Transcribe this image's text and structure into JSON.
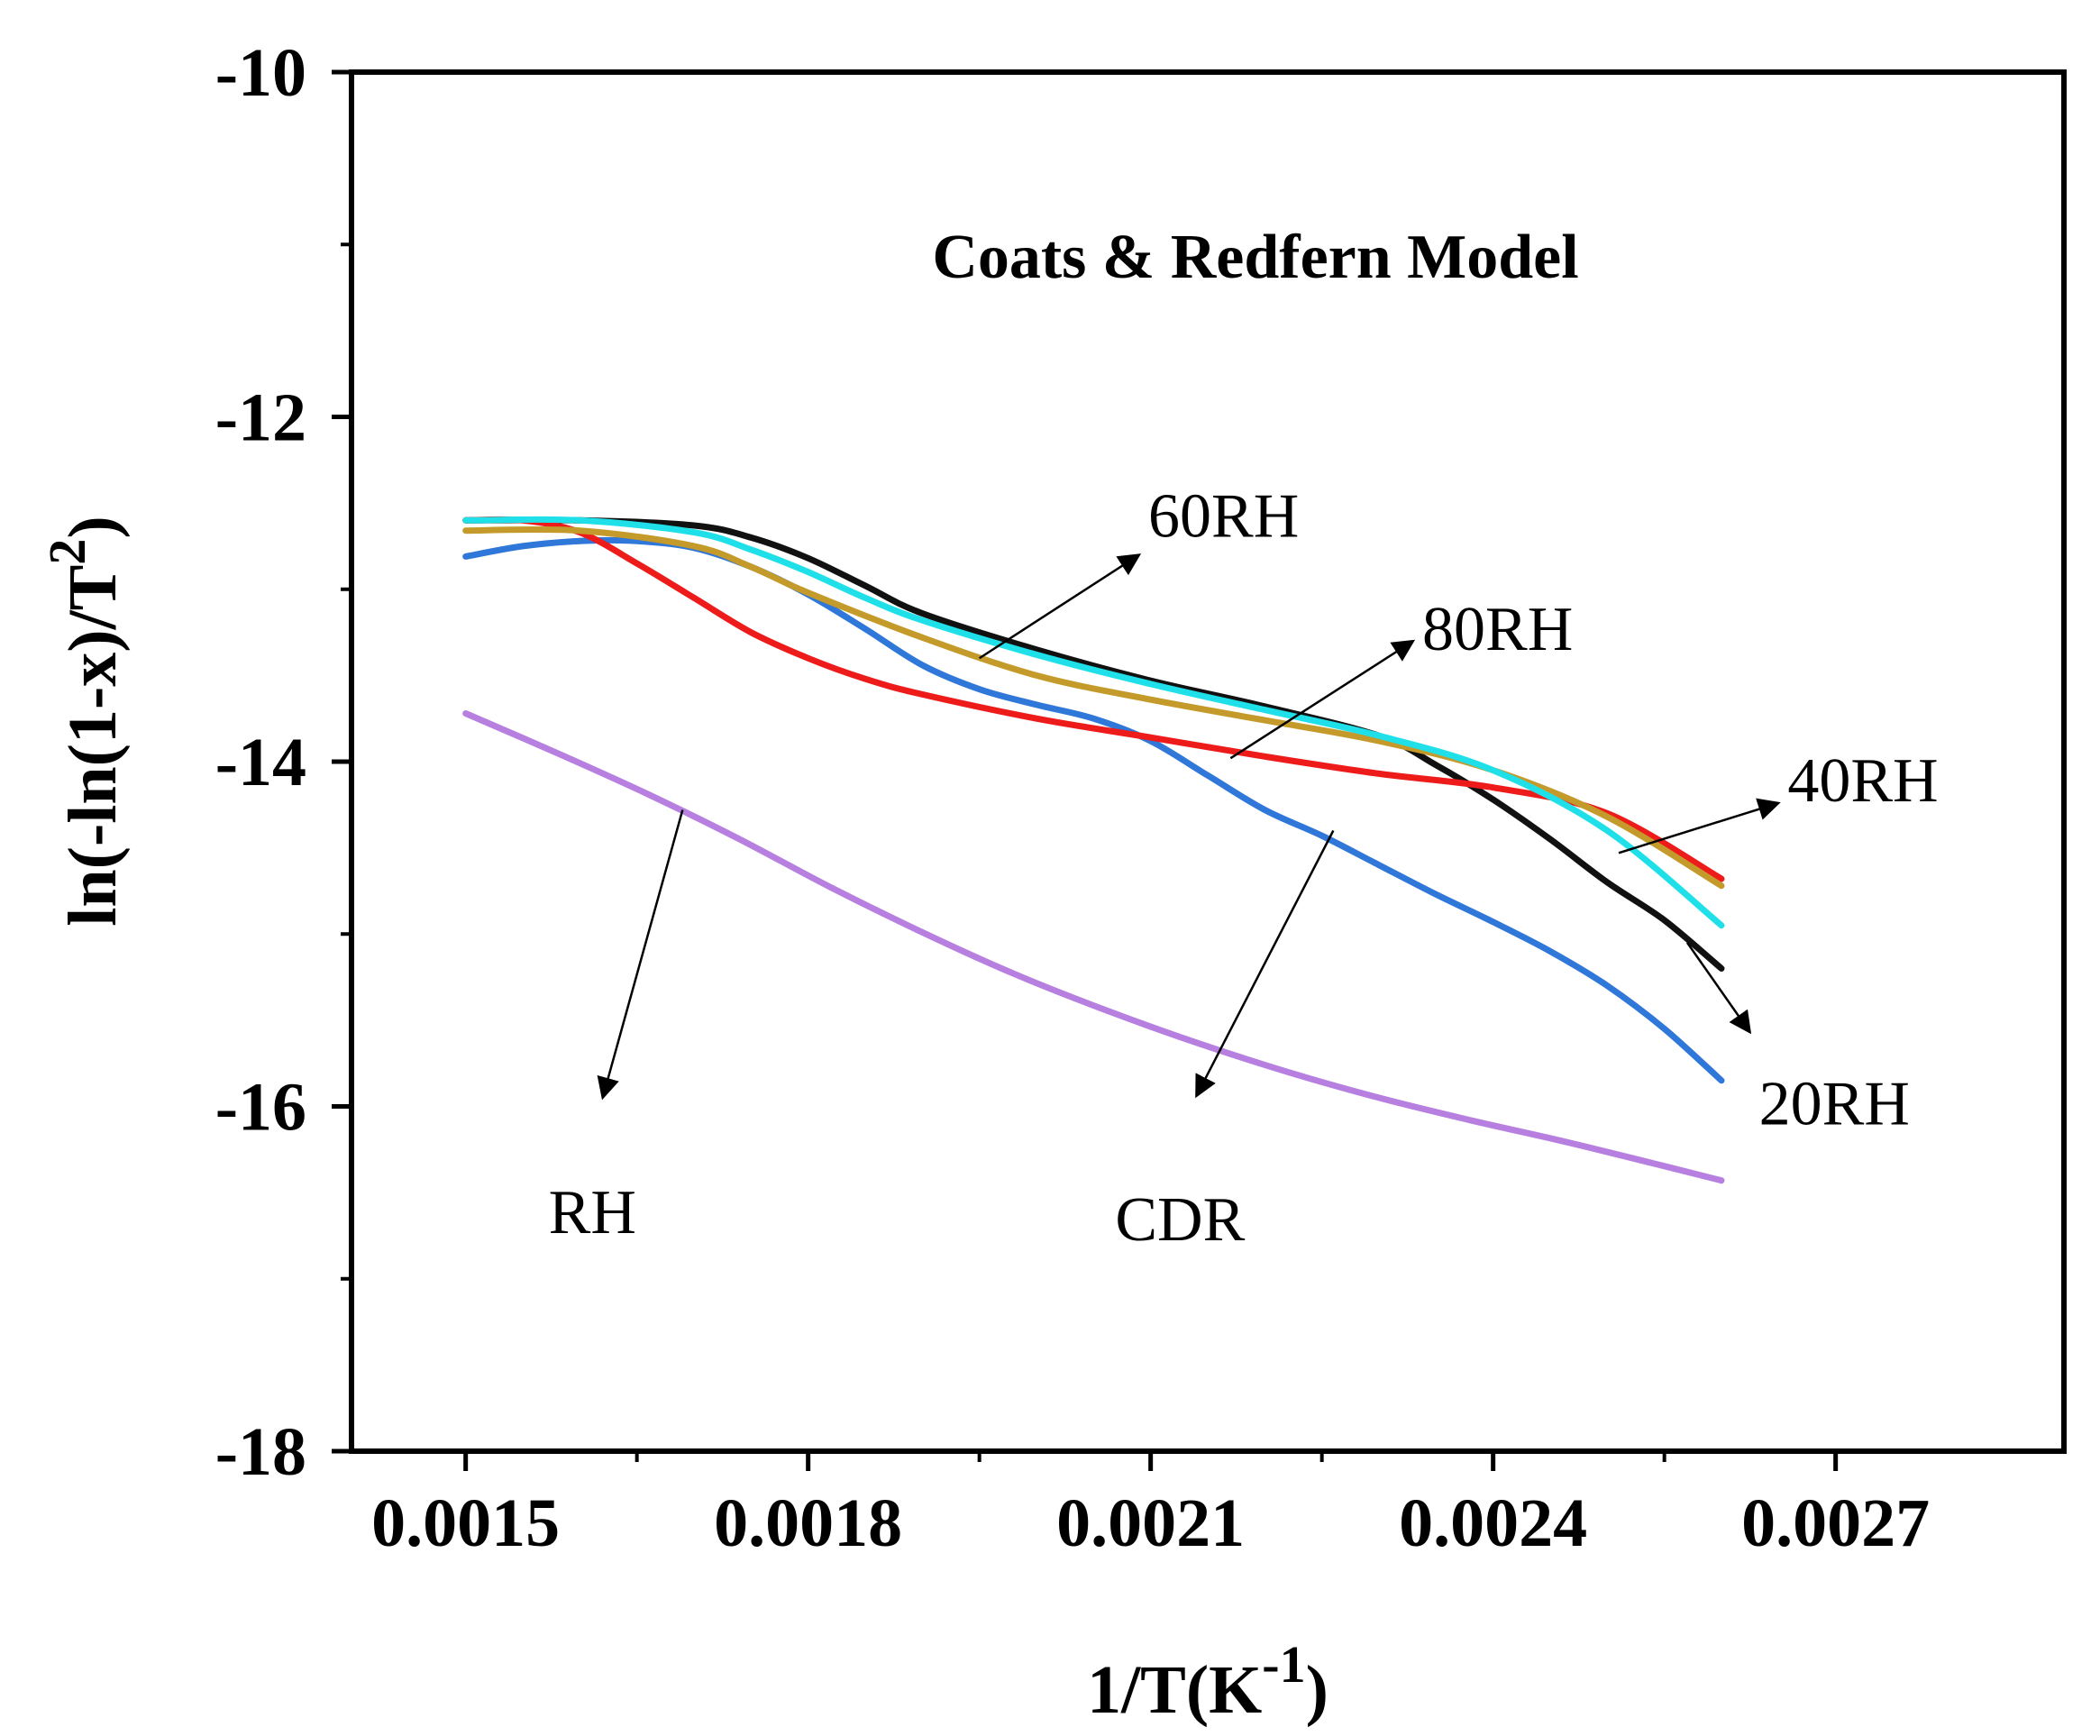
{
  "chart_data": {
    "type": "line",
    "title": "Coats & Redfern Model",
    "xlabel_base": "1/T(K",
    "xlabel_sup": "-1",
    "xlabel_close": ")",
    "ylabel_base": "ln(-ln(1-x)/T",
    "ylabel_sup": "2",
    "ylabel_close": ")",
    "xlim": [
      0.0014,
      0.0029
    ],
    "ylim": [
      -18,
      -10
    ],
    "xticks": [
      0.0015,
      0.0018,
      0.0021,
      0.0024,
      0.0027
    ],
    "xtick_labels": [
      "0.0015",
      "0.0018",
      "0.0021",
      "0.0024",
      "0.0027"
    ],
    "yticks": [
      -18,
      -16,
      -14,
      -12,
      -10
    ],
    "ytick_labels": [
      "-18",
      "-16",
      "-14",
      "-12",
      "-10"
    ],
    "series": [
      {
        "name": "RH",
        "color": "#b77fe0",
        "x": [
          0.0015,
          0.00158,
          0.00166,
          0.00174,
          0.00182,
          0.0019,
          0.00198,
          0.00206,
          0.00214,
          0.00222,
          0.0023,
          0.00238,
          0.00246,
          0.00254,
          0.0026
        ],
        "y": [
          -13.72,
          -13.95,
          -14.19,
          -14.45,
          -14.73,
          -14.99,
          -15.23,
          -15.44,
          -15.63,
          -15.8,
          -15.95,
          -16.08,
          -16.2,
          -16.33,
          -16.43
        ]
      },
      {
        "name": "CDR",
        "color": "#2f77d8",
        "x": [
          0.0015,
          0.00155,
          0.0016,
          0.00165,
          0.0017,
          0.00175,
          0.0018,
          0.00185,
          0.0019,
          0.00195,
          0.002,
          0.00205,
          0.0021,
          0.00215,
          0.0022,
          0.00225,
          0.0023,
          0.00235,
          0.0024,
          0.00245,
          0.0025,
          0.00255,
          0.0026
        ],
        "y": [
          -12.81,
          -12.75,
          -12.72,
          -12.72,
          -12.76,
          -12.87,
          -13.03,
          -13.23,
          -13.44,
          -13.58,
          -13.67,
          -13.75,
          -13.88,
          -14.08,
          -14.28,
          -14.43,
          -14.6,
          -14.77,
          -14.93,
          -15.1,
          -15.3,
          -15.55,
          -15.85
        ]
      },
      {
        "name": "20RH",
        "color": "#111111",
        "x": [
          0.0015,
          0.0016,
          0.0017,
          0.00175,
          0.0018,
          0.00185,
          0.0019,
          0.002,
          0.0021,
          0.0022,
          0.0023,
          0.00235,
          0.0024,
          0.00245,
          0.0025,
          0.00255,
          0.0026
        ],
        "y": [
          -12.6,
          -12.6,
          -12.63,
          -12.7,
          -12.82,
          -12.98,
          -13.14,
          -13.35,
          -13.53,
          -13.68,
          -13.85,
          -14.02,
          -14.22,
          -14.45,
          -14.7,
          -14.92,
          -15.2
        ]
      },
      {
        "name": "40RH",
        "color": "#ee1b1b",
        "x": [
          0.0015,
          0.00155,
          0.0016,
          0.00165,
          0.0017,
          0.00175,
          0.0018,
          0.00185,
          0.0019,
          0.002,
          0.0021,
          0.0022,
          0.0023,
          0.0024,
          0.0025,
          0.0026
        ],
        "y": [
          -12.6,
          -12.6,
          -12.67,
          -12.85,
          -13.05,
          -13.25,
          -13.4,
          -13.52,
          -13.61,
          -13.75,
          -13.86,
          -13.97,
          -14.07,
          -14.15,
          -14.3,
          -14.68
        ]
      },
      {
        "name": "60RH",
        "color": "#c49a2a",
        "x": [
          0.0015,
          0.0016,
          0.0017,
          0.00175,
          0.0018,
          0.0019,
          0.002,
          0.0021,
          0.0022,
          0.0023,
          0.0024,
          0.0025,
          0.0026
        ],
        "y": [
          -12.66,
          -12.66,
          -12.75,
          -12.87,
          -13.02,
          -13.28,
          -13.5,
          -13.64,
          -13.76,
          -13.88,
          -14.05,
          -14.32,
          -14.72
        ]
      },
      {
        "name": "80RH",
        "color": "#1fe0e8",
        "x": [
          0.0015,
          0.0016,
          0.0017,
          0.00175,
          0.0018,
          0.00185,
          0.0019,
          0.002,
          0.0021,
          0.0022,
          0.0023,
          0.0024,
          0.0025,
          0.0026
        ],
        "y": [
          -12.6,
          -12.6,
          -12.67,
          -12.77,
          -12.9,
          -13.05,
          -13.18,
          -13.38,
          -13.55,
          -13.7,
          -13.85,
          -14.05,
          -14.4,
          -14.95
        ]
      }
    ],
    "annotations": [
      {
        "text": "60RH",
        "arrow_from": [
          0.00195,
          -13.4
        ],
        "arrow_to": [
          0.00209,
          -12.8
        ]
      },
      {
        "text": "80RH",
        "arrow_from": [
          0.00217,
          -13.98
        ],
        "arrow_to": [
          0.00233,
          -13.3
        ]
      },
      {
        "text": "40RH",
        "arrow_from": [
          0.00251,
          -14.53
        ],
        "arrow_to": [
          0.00265,
          -14.24
        ]
      },
      {
        "text": "20RH",
        "arrow_from": [
          0.00257,
          -15.05
        ],
        "arrow_to": [
          0.002625,
          -15.57
        ]
      },
      {
        "text": "RH",
        "arrow_from": [
          0.00169,
          -14.28
        ],
        "arrow_to": [
          0.00162,
          -15.95
        ]
      },
      {
        "text": "CDR",
        "arrow_from": [
          0.00226,
          -14.4
        ],
        "arrow_to": [
          0.00214,
          -15.94
        ]
      }
    ]
  }
}
